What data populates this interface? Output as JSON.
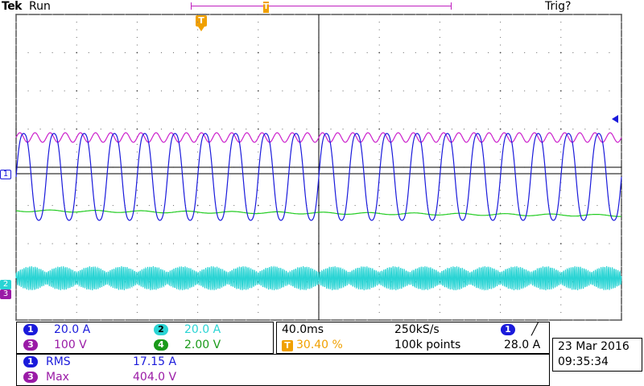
{
  "header": {
    "brand": "Tek",
    "run_state": "Run",
    "trigger_status": "Trig?"
  },
  "markers": {
    "trigger_position_symbol": "T",
    "trigger_symbol": "T",
    "ch1_ground": "1",
    "ch2_ground": "2",
    "ch3_ground": "3"
  },
  "channels": [
    {
      "num": "1",
      "scale": "20.0 A",
      "color": "#1a1adb"
    },
    {
      "num": "2",
      "scale": "20.0 A",
      "color": "#2ad4d4"
    },
    {
      "num": "3",
      "scale": "100 V",
      "color": "#9a1aa6"
    },
    {
      "num": "4",
      "scale": "2.00 V",
      "color": "#1a9a1a"
    }
  ],
  "timebase": {
    "time_per_div": "40.0ms",
    "sample_rate": "250kS/s",
    "trigger_pos_symbol": "T",
    "trigger_pos": "30.40 %",
    "record_length": "100k points",
    "trigger_source": "1",
    "trigger_level": "28.0 A"
  },
  "measurements": [
    {
      "ch": "1",
      "label": "RMS",
      "value": "17.15 A"
    },
    {
      "ch": "3",
      "label": "Max",
      "value": "404.0 V"
    }
  ],
  "datetime": {
    "date": "23 Mar  2016",
    "time": "09:35:34"
  },
  "waveform_colors": {
    "ch1": "#1a1adb",
    "ch2": "#2ad4d4",
    "ch3": "#cc22cc",
    "ch4": "#22cc22",
    "grid": "#000000"
  },
  "scope_state": {
    "divisions_horizontal": 10,
    "divisions_vertical": 8
  }
}
